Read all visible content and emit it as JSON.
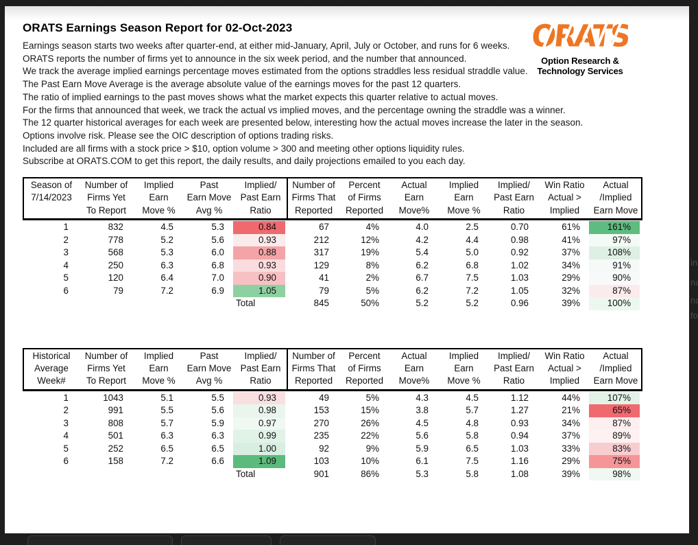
{
  "page": {
    "title": "ORATS Earnings Season Report for 02-Oct-2023",
    "intro_lines": [
      "Earnings season starts two weeks after quarter-end, at either mid-January, April, July or October, and runs for 6 weeks.",
      "ORATS reports the number of firms yet to announce in the six week period, and the number that announced.",
      "We track the average implied earnings percentage moves estimated from the options straddles less residual straddle value.",
      "The Past Earn Move Average is the average absolute value of the earnings moves for the past 12 quarters.",
      "The ratio of implied earnings to the past moves shows what the market expects this quarter relative to actual moves.",
      "For the firms that announced that week, we track the actual vs implied moves, and the percentage owning the straddle was a winner.",
      "The 12 quarter historical averages for each week are presented below, interesting how the actual moves increase the later in the season.",
      "Options involve risk. Please see the OIC description of options trading risks.",
      "Included are all firms with a stock price > $10, option volume > 300 and meeting other options liquidity rules.",
      "Subscribe at ORATS.COM to get this report, the daily results, and daily projections emailed to you each day."
    ]
  },
  "logo": {
    "wordmark": "ORATS",
    "tagline": [
      "Option Research &",
      "Technology Services"
    ],
    "brand_color": "#ee7623"
  },
  "tables": [
    {
      "name": "current-season",
      "columns": [
        [
          "Season of",
          "7/14/2023",
          ""
        ],
        [
          "Number of",
          "Firms Yet",
          "To Report"
        ],
        [
          "Implied",
          "Earn",
          "Move %"
        ],
        [
          "Past",
          "Earn Move",
          "Avg %"
        ],
        [
          "Implied/",
          "Past Earn",
          "Ratio"
        ],
        [
          "Number of",
          "Firms That",
          "Reported"
        ],
        [
          "Percent",
          "of Firms",
          "Reported"
        ],
        [
          "Actual",
          "Earn",
          "Move%"
        ],
        [
          "Implied",
          "Earn",
          "Move %"
        ],
        [
          "Implied/",
          "Past Earn",
          "Ratio"
        ],
        [
          "Win Ratio",
          "Actual >",
          "Implied"
        ],
        [
          "Actual",
          "/Implied",
          "Earn Move"
        ]
      ],
      "rows": [
        [
          "1",
          "832",
          "4.5",
          "5.3",
          {
            "v": "0.84",
            "bg": "#f0696f"
          },
          "67",
          "4%",
          "4.0",
          "2.5",
          "0.70",
          "61%",
          {
            "v": "161%",
            "bg": "#5ebc80"
          }
        ],
        [
          "2",
          "778",
          "5.2",
          "5.6",
          {
            "v": "0.93",
            "bg": "#fcebec"
          },
          "212",
          "12%",
          "4.2",
          "4.4",
          "0.98",
          "41%",
          {
            "v": "97%",
            "bg": "#f4faf6"
          }
        ],
        [
          "3",
          "568",
          "5.3",
          "6.0",
          {
            "v": "0.88",
            "bg": "#f4a4a7"
          },
          "317",
          "19%",
          "5.4",
          "5.0",
          "0.92",
          "37%",
          {
            "v": "108%",
            "bg": "#def0e4"
          }
        ],
        [
          "4",
          "250",
          "6.3",
          "6.8",
          {
            "v": "0.93",
            "bg": "#fadcde"
          },
          "129",
          "8%",
          "6.2",
          "6.8",
          "1.02",
          "34%",
          {
            "v": "91%",
            "bg": "#f6faf7"
          }
        ],
        [
          "5",
          "120",
          "6.4",
          "7.0",
          {
            "v": "0.90",
            "bg": "#f7c0c3"
          },
          "41",
          "2%",
          "6.7",
          "7.5",
          "1.03",
          "29%",
          {
            "v": "90%",
            "bg": "#f7faf8"
          }
        ],
        [
          "6",
          "79",
          "7.2",
          "6.9",
          {
            "v": "1.05",
            "bg": "#8ed1a1"
          },
          "79",
          "5%",
          "6.2",
          "7.2",
          "1.05",
          "32%",
          {
            "v": "87%",
            "bg": "#fcebec"
          }
        ],
        [
          "",
          "",
          "",
          "",
          {
            "v": "Total",
            "align": "left"
          },
          "845",
          "50%",
          "5.2",
          "5.2",
          "0.96",
          "39%",
          {
            "v": "100%",
            "bg": "#ecf7f0"
          }
        ]
      ]
    },
    {
      "name": "historical-average",
      "columns": [
        [
          "Historical",
          "Average",
          "Week#"
        ],
        [
          "Number of",
          "Firms Yet",
          "To Report"
        ],
        [
          "Implied",
          "Earn",
          "Move %"
        ],
        [
          "Past",
          "Earn Move",
          "Avg %"
        ],
        [
          "Implied/",
          "Past Earn",
          "Ratio"
        ],
        [
          "Number of",
          "Firms That",
          "Reported"
        ],
        [
          "Percent",
          "of Firms",
          "Reported"
        ],
        [
          "Actual",
          "Earn",
          "Move%"
        ],
        [
          "Implied",
          "Earn",
          "Move %"
        ],
        [
          "Implied/",
          "Past Earn",
          "Ratio"
        ],
        [
          "Win Ratio",
          "Actual >",
          "Implied"
        ],
        [
          "Actual",
          "/Implied",
          "Earn Move"
        ]
      ],
      "rows": [
        [
          "1",
          "1043",
          "5.1",
          "5.5",
          {
            "v": "0.93",
            "bg": "#fadfe1"
          },
          "49",
          "5%",
          "4.3",
          "4.5",
          "1.12",
          "44%",
          {
            "v": "107%",
            "bg": "#e2f2e7"
          }
        ],
        [
          "2",
          "991",
          "5.5",
          "5.6",
          {
            "v": "0.98",
            "bg": "#e9f5ed"
          },
          "153",
          "15%",
          "3.8",
          "5.7",
          "1.27",
          "21%",
          {
            "v": "65%",
            "bg": "#f0696f"
          }
        ],
        [
          "3",
          "808",
          "5.7",
          "5.9",
          {
            "v": "0.97",
            "bg": "#eff8f2"
          },
          "270",
          "26%",
          "4.5",
          "4.8",
          "0.93",
          "34%",
          {
            "v": "87%",
            "bg": "#fdeff0"
          }
        ],
        [
          "4",
          "501",
          "6.3",
          "6.3",
          {
            "v": "0.99",
            "bg": "#e1f2e7"
          },
          "235",
          "22%",
          "5.6",
          "5.8",
          "0.94",
          "37%",
          {
            "v": "89%",
            "bg": "#fdf1f2"
          }
        ],
        [
          "5",
          "252",
          "6.5",
          "6.5",
          {
            "v": "1.00",
            "bg": "#d8eee0"
          },
          "92",
          "9%",
          "5.9",
          "6.5",
          "1.03",
          "33%",
          {
            "v": "83%",
            "bg": "#f8cdd0"
          }
        ],
        [
          "6",
          "158",
          "7.2",
          "6.6",
          {
            "v": "1.09",
            "bg": "#5bba7c"
          },
          "103",
          "10%",
          "6.1",
          "7.5",
          "1.16",
          "29%",
          {
            "v": "75%",
            "bg": "#f59598"
          }
        ],
        [
          "",
          "",
          "",
          "",
          {
            "v": "Total",
            "align": "left"
          },
          "901",
          "86%",
          "5.3",
          "5.8",
          "1.08",
          "39%",
          {
            "v": "98%",
            "bg": "#eff8f2"
          }
        ]
      ]
    }
  ],
  "edge_fragments": [
    "in",
    "na",
    "na",
    "fo"
  ]
}
